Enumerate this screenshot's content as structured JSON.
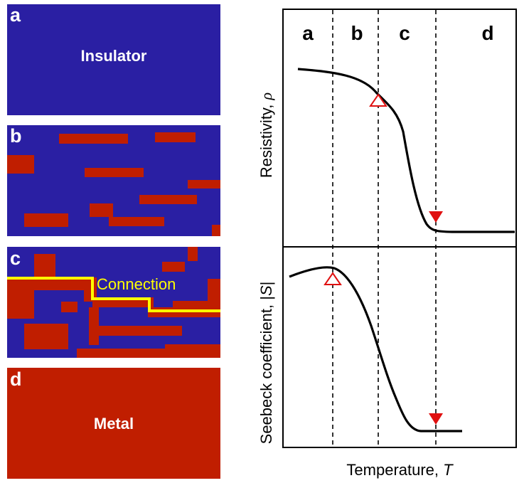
{
  "colors": {
    "insulator": "#2a1fa3",
    "metal": "#c01e00",
    "connection": "#ffff00",
    "curve": "#000000",
    "marker": "#e01010"
  },
  "panels": [
    {
      "letter": "a",
      "title": "Insulator"
    },
    {
      "letter": "b",
      "title": ""
    },
    {
      "letter": "c",
      "title": ""
    },
    {
      "letter": "d",
      "title": "Metal"
    }
  ],
  "connection_label": "Connection",
  "plot": {
    "regions": [
      "a",
      "b",
      "c",
      "d"
    ],
    "top_ylabel_main": "Resistivity, ",
    "top_ylabel_symbol": "ρ",
    "bottom_ylabel_main": "Seebeck coefficient, |",
    "bottom_ylabel_symbol": "S",
    "bottom_ylabel_end": "|",
    "xlabel_main": "Temperature, ",
    "xlabel_symbol": "T",
    "markers": [
      "open-triangle-up",
      "filled-triangle-down"
    ]
  }
}
